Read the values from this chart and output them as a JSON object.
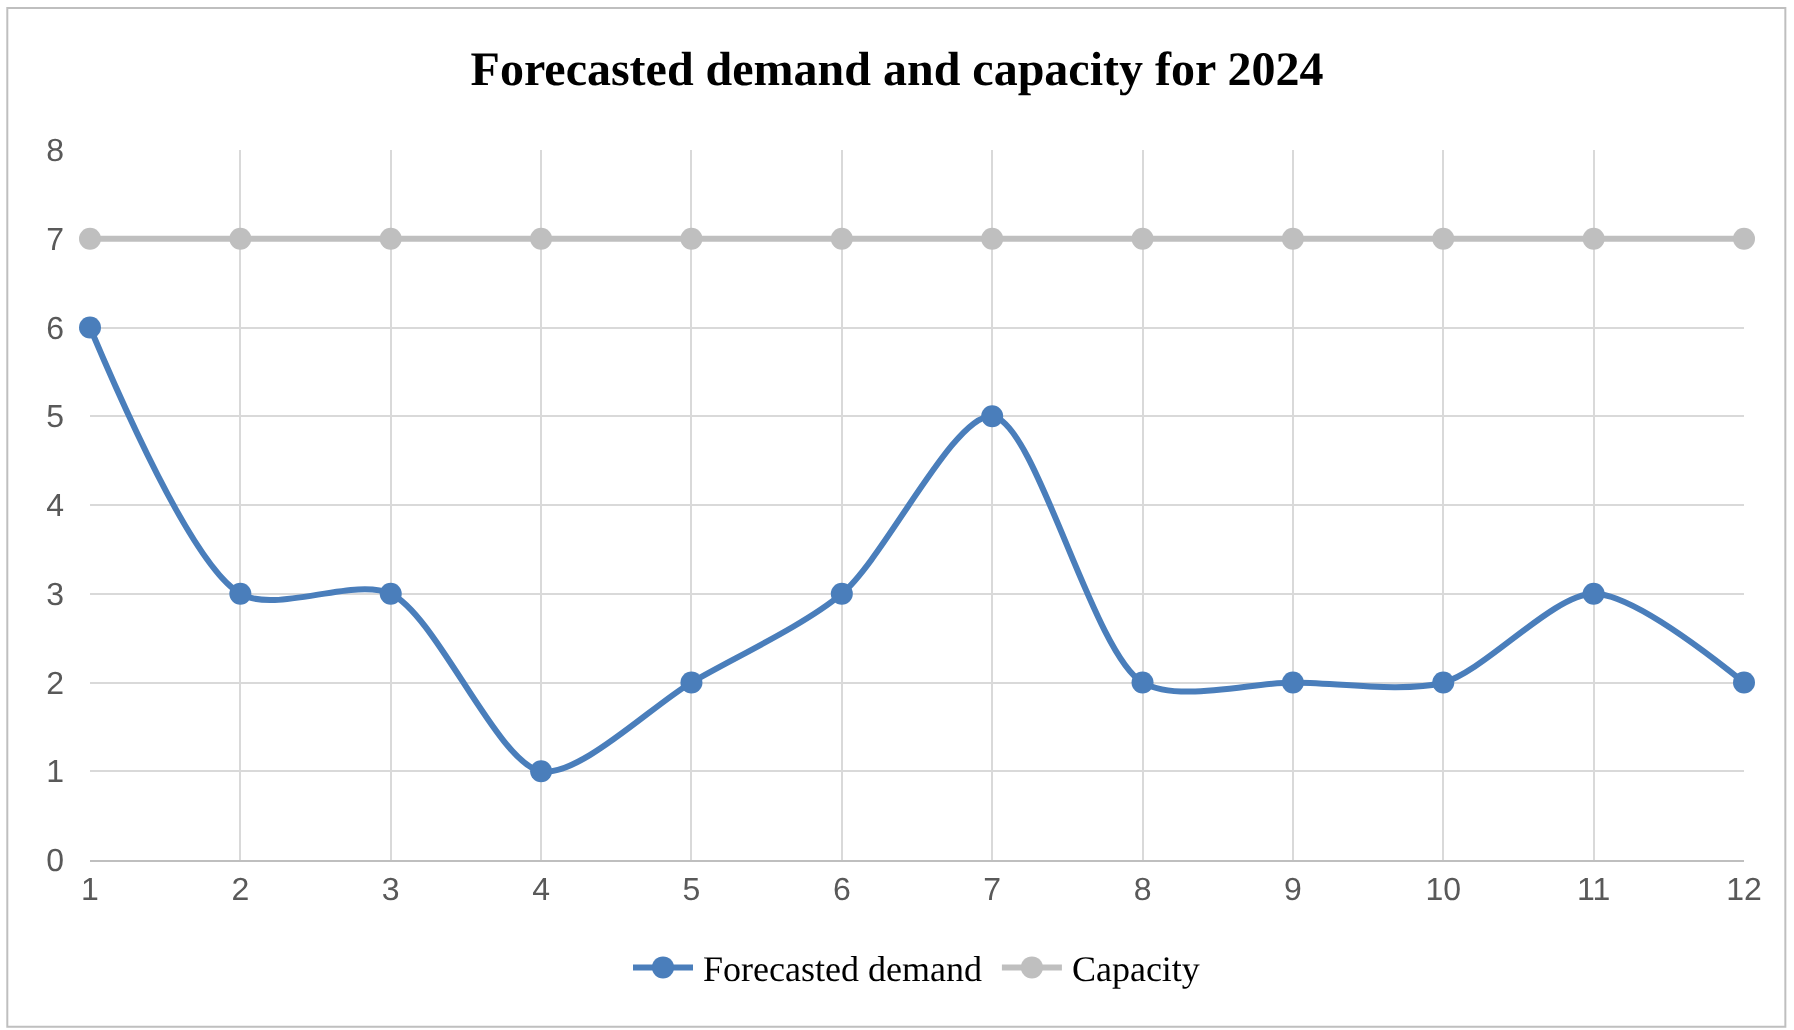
{
  "chart_data": {
    "type": "line",
    "title": "Forecasted demand and capacity for 2024",
    "x": [
      1,
      2,
      3,
      4,
      5,
      6,
      7,
      8,
      9,
      10,
      11,
      12
    ],
    "series": [
      {
        "name": "Forecasted demand",
        "color": "#4a7ebb",
        "values": [
          6,
          3,
          3,
          1,
          2,
          3,
          5,
          2,
          2,
          2,
          3,
          2
        ]
      },
      {
        "name": "Capacity",
        "color": "#bfbfbf",
        "values": [
          7,
          7,
          7,
          7,
          7,
          7,
          7,
          7,
          7,
          7,
          7,
          7
        ]
      }
    ],
    "xlim": [
      1,
      12
    ],
    "xticks": [
      1,
      2,
      3,
      4,
      5,
      6,
      7,
      8,
      9,
      10,
      11,
      12
    ],
    "ylim": [
      0,
      8
    ],
    "yticks": [
      0,
      1,
      2,
      3,
      4,
      5,
      6,
      7,
      8
    ],
    "grid": true,
    "legend": "bottom",
    "marker": "circle",
    "line_style": "solid"
  }
}
